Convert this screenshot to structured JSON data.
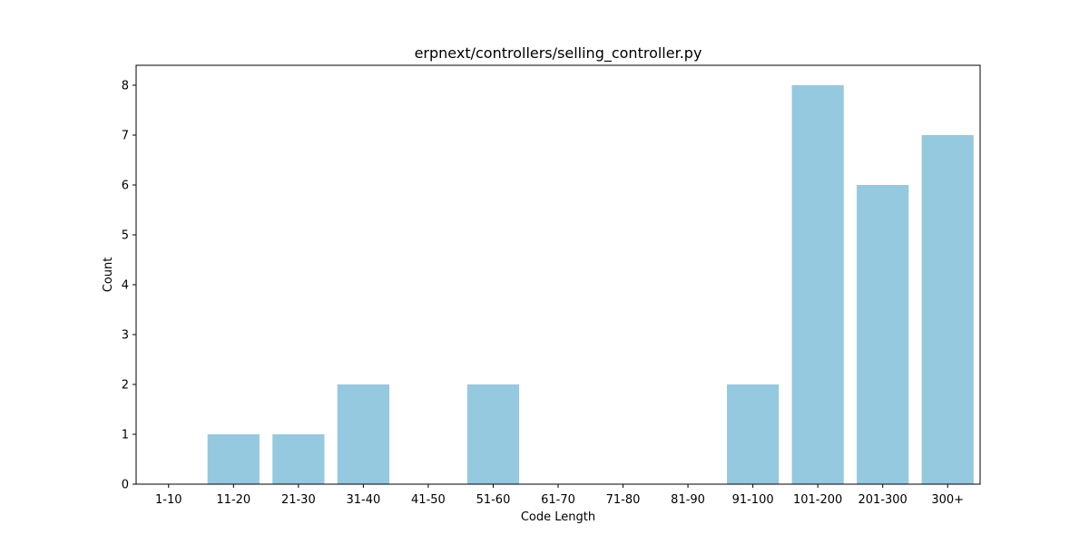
{
  "chart_data": {
    "type": "bar",
    "title": "erpnext/controllers/selling_controller.py",
    "xlabel": "Code Length",
    "ylabel": "Count",
    "categories": [
      "1-10",
      "11-20",
      "21-30",
      "31-40",
      "41-50",
      "51-60",
      "61-70",
      "71-80",
      "81-90",
      "91-100",
      "101-200",
      "201-300",
      "300+"
    ],
    "values": [
      0,
      1,
      1,
      2,
      0,
      2,
      0,
      0,
      0,
      2,
      8,
      6,
      7
    ],
    "ylim": [
      0,
      8.4
    ],
    "yticks": [
      0,
      1,
      2,
      3,
      4,
      5,
      6,
      7,
      8
    ],
    "grid": false,
    "legend": "none",
    "bar_color": "#95c9df"
  }
}
